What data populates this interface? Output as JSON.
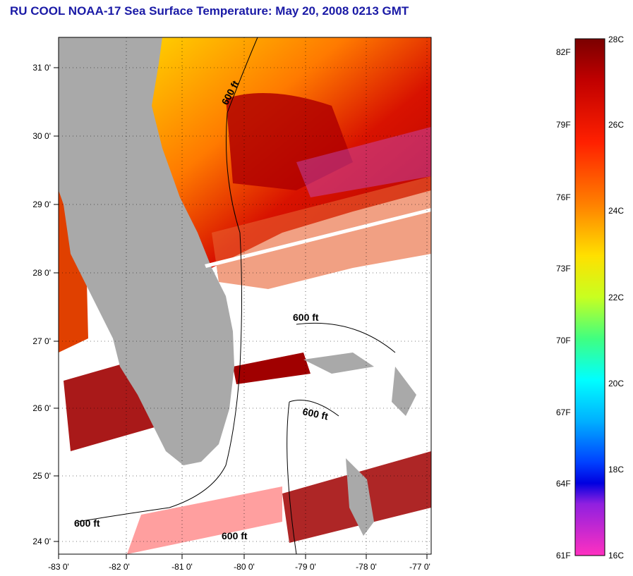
{
  "title": "RU COOL  NOAA-17  Sea Surface Temperature:  May 20, 2008 0213 GMT",
  "axes": {
    "lat_labels": [
      "31 0'",
      "30 0'",
      "29 0'",
      "28 0'",
      "27 0'",
      "26 0'",
      "25 0'",
      "24 0'"
    ],
    "lon_labels": [
      "-83 0'",
      "-82 0'",
      "-81 0'",
      "-80 0'",
      "-79 0'",
      "-78 0'",
      "-77 0'"
    ]
  },
  "contours": {
    "label": "600 ft"
  },
  "colorbar": {
    "fahrenheit_labels": [
      "82F",
      "79F",
      "76F",
      "73F",
      "70F",
      "67F",
      "64F",
      "61F"
    ],
    "celsius_labels": [
      "28C",
      "26C",
      "24C",
      "22C",
      "20C",
      "18C",
      "16C"
    ],
    "range_c": [
      16,
      28
    ]
  },
  "colors": {
    "land": "#a9a9a9",
    "title": "#1a1aa6",
    "warm": "#b00000",
    "cloud": "#ffffff"
  }
}
